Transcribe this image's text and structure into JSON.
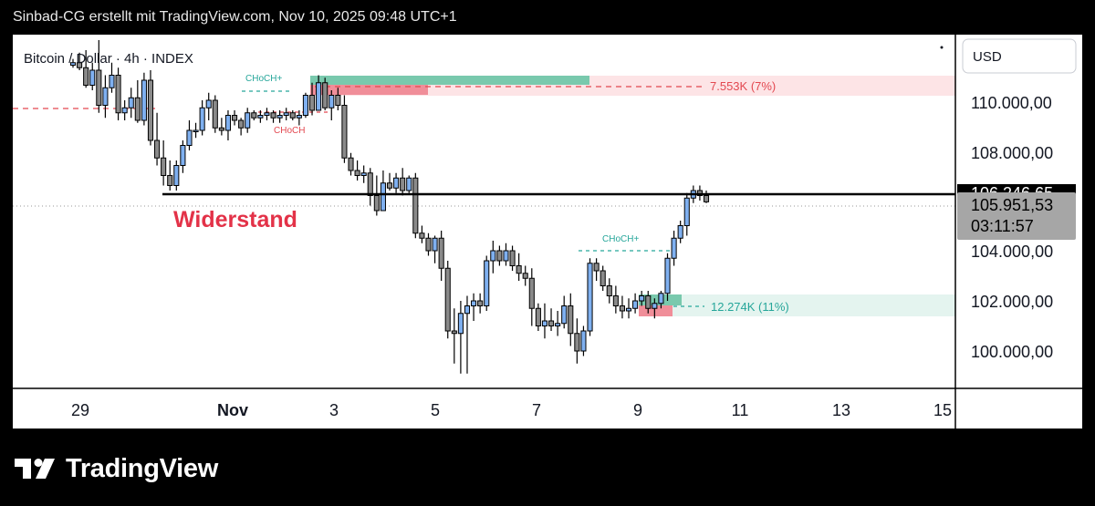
{
  "header": {
    "caption": "Sinbad-CG erstellt mit TradingView.com, Nov 10, 2025 09:48 UTC+1"
  },
  "chart_data": {
    "type": "candlestick",
    "title": "Bitcoin / Dollar · 4h · INDEX",
    "currency": "USD",
    "ylim": [
      98500,
      112500
    ],
    "y_ticks": [
      {
        "value": 100000,
        "label": "100.000,00"
      },
      {
        "value": 102000,
        "label": "102.000,00"
      },
      {
        "value": 104000,
        "label": "104.000,00"
      },
      {
        "value": 108000,
        "label": "108.000,00"
      },
      {
        "value": 110000,
        "label": "110.000,00"
      }
    ],
    "x_range": [
      28.1,
      15.85
    ],
    "x_ticks": [
      {
        "day": 29,
        "label": "29"
      },
      {
        "day": 32,
        "label": "Nov"
      },
      {
        "day": 35,
        "label": "3"
      },
      {
        "day": 37,
        "label": "5"
      },
      {
        "day": 39,
        "label": "7"
      },
      {
        "day": 41,
        "label": "9"
      },
      {
        "day": 43,
        "label": "11"
      },
      {
        "day": 45,
        "label": "13"
      },
      {
        "day": 47,
        "label": "15"
      }
    ],
    "current_price": {
      "value": 105951.53,
      "label": "105.951,53",
      "countdown": "03:11:57"
    },
    "resistance": {
      "value": 106246.65,
      "label": "106.246,65",
      "text": "Widerstand"
    },
    "annotations": [
      {
        "text": "CHoCH+",
        "color": "#26a69a"
      },
      {
        "text": "CHoCH",
        "color": "#e34850"
      },
      {
        "text": "CHoCH+",
        "color": "#26a69a"
      },
      {
        "text": "7.553K (7%)",
        "color": "#e34850"
      },
      {
        "text": "12.274K (11%)",
        "color": "#26a69a"
      }
    ],
    "zones": [
      {
        "kind": "supply",
        "from": 109750,
        "to": 111000,
        "color": "#fde4e6"
      },
      {
        "kind": "demand",
        "from": 101350,
        "to": 102300,
        "color": "#e4f4ef"
      }
    ],
    "colors": {
      "up": "#7fb0f0",
      "down": "#8a8a8a",
      "resistance": "#000000",
      "red": "#e34850",
      "green": "#26a69a"
    },
    "candles": [
      [
        111400,
        111650,
        111300,
        111500
      ],
      [
        111500,
        111900,
        111200,
        111300
      ],
      [
        111300,
        112000,
        110500,
        110600
      ],
      [
        110600,
        111500,
        110400,
        111200
      ],
      [
        111200,
        112400,
        109500,
        109800
      ],
      [
        109800,
        111000,
        109300,
        110500
      ],
      [
        110500,
        111500,
        110300,
        111000
      ],
      [
        111000,
        111300,
        109200,
        109500
      ],
      [
        109500,
        110000,
        109200,
        109700
      ],
      [
        109700,
        110500,
        109300,
        110100
      ],
      [
        110100,
        110800,
        109100,
        109200
      ],
      [
        109200,
        111100,
        109000,
        110800
      ],
      [
        110800,
        111200,
        108200,
        108400
      ],
      [
        108400,
        109500,
        107400,
        107700
      ],
      [
        107700,
        108400,
        106600,
        107000
      ],
      [
        107000,
        107600,
        106400,
        106600
      ],
      [
        106600,
        107600,
        106400,
        107400
      ],
      [
        107400,
        108400,
        107100,
        108200
      ],
      [
        108200,
        109200,
        108000,
        108800
      ],
      [
        108800,
        109100,
        108500,
        108800
      ],
      [
        108800,
        110000,
        108600,
        109700
      ],
      [
        109700,
        110300,
        109200,
        110000
      ],
      [
        110000,
        110200,
        108700,
        108900
      ],
      [
        108900,
        109300,
        108600,
        108800
      ],
      [
        108800,
        109600,
        108400,
        109400
      ],
      [
        109400,
        109600,
        109000,
        109200
      ],
      [
        109200,
        109300,
        108600,
        108900
      ],
      [
        108900,
        109700,
        108700,
        109500
      ],
      [
        109500,
        109600,
        109200,
        109300
      ],
      [
        109300,
        109600,
        109100,
        109400
      ],
      [
        109400,
        109700,
        109200,
        109500
      ],
      [
        109500,
        109600,
        109100,
        109300
      ],
      [
        109300,
        109600,
        109100,
        109400
      ],
      [
        109400,
        109700,
        109200,
        109500
      ],
      [
        109500,
        109600,
        109200,
        109300
      ],
      [
        109300,
        109600,
        109000,
        109400
      ],
      [
        109400,
        110300,
        109300,
        110200
      ],
      [
        110200,
        110700,
        109400,
        109600
      ],
      [
        109600,
        111000,
        109600,
        110700
      ],
      [
        110700,
        110900,
        109600,
        109700
      ],
      [
        109700,
        110400,
        109200,
        110200
      ],
      [
        110200,
        110500,
        109600,
        109800
      ],
      [
        109800,
        110200,
        107500,
        107700
      ],
      [
        107700,
        107900,
        107000,
        107200
      ],
      [
        107200,
        107600,
        106800,
        107000
      ],
      [
        107000,
        107400,
        106700,
        107100
      ],
      [
        107100,
        107300,
        105800,
        106200
      ],
      [
        106200,
        107000,
        105400,
        105600
      ],
      [
        105600,
        107200,
        105600,
        106700
      ],
      [
        106700,
        107100,
        106400,
        106500
      ],
      [
        106500,
        107100,
        106300,
        106900
      ],
      [
        106900,
        107300,
        106200,
        106400
      ],
      [
        106400,
        107000,
        106300,
        106900
      ],
      [
        106900,
        107100,
        104500,
        104700
      ],
      [
        104700,
        105000,
        104300,
        104500
      ],
      [
        104500,
        104700,
        103800,
        104000
      ],
      [
        104000,
        104600,
        103500,
        104500
      ],
      [
        104500,
        104800,
        102800,
        103300
      ],
      [
        103300,
        103600,
        100500,
        100800
      ],
      [
        100800,
        101700,
        99500,
        100700
      ],
      [
        100700,
        102000,
        99100,
        101500
      ],
      [
        101500,
        102200,
        99100,
        101800
      ],
      [
        101800,
        102300,
        101200,
        102000
      ],
      [
        102000,
        102300,
        101500,
        101800
      ],
      [
        101800,
        103800,
        101600,
        103600
      ],
      [
        103600,
        104400,
        103100,
        104000
      ],
      [
        104000,
        104200,
        103400,
        103600
      ],
      [
        103600,
        104300,
        103400,
        104000
      ],
      [
        104000,
        104200,
        103200,
        103400
      ],
      [
        103400,
        103900,
        102800,
        103100
      ],
      [
        103100,
        103400,
        102600,
        102900
      ],
      [
        102900,
        103300,
        101000,
        101700
      ],
      [
        101700,
        101900,
        100800,
        101000
      ],
      [
        101000,
        101900,
        100500,
        101200
      ],
      [
        101200,
        101700,
        100800,
        101000
      ],
      [
        101000,
        101600,
        100600,
        101100
      ],
      [
        101100,
        102200,
        100900,
        101800
      ],
      [
        101800,
        102300,
        100200,
        100700
      ],
      [
        100700,
        101300,
        99500,
        100000
      ],
      [
        100000,
        101000,
        99800,
        100800
      ],
      [
        100800,
        103700,
        100600,
        103500
      ],
      [
        103500,
        103700,
        102800,
        103200
      ],
      [
        103200,
        103400,
        102400,
        102600
      ],
      [
        102600,
        102900,
        101900,
        102200
      ],
      [
        102200,
        102600,
        101500,
        101800
      ],
      [
        101800,
        102200,
        101300,
        101600
      ],
      [
        101600,
        102100,
        101300,
        101700
      ],
      [
        101700,
        102300,
        101500,
        102000
      ],
      [
        102000,
        102400,
        101800,
        102200
      ],
      [
        102200,
        102400,
        101500,
        101700
      ],
      [
        101700,
        102100,
        101300,
        101900
      ],
      [
        101900,
        102400,
        101700,
        102300
      ],
      [
        102300,
        103900,
        102000,
        103700
      ],
      [
        103700,
        104800,
        103400,
        104500
      ],
      [
        104500,
        105200,
        104300,
        105000
      ],
      [
        105000,
        106300,
        104600,
        106100
      ],
      [
        106100,
        106600,
        105900,
        106400
      ],
      [
        106400,
        106600,
        106000,
        106200
      ],
      [
        106200,
        106400,
        105900,
        105950
      ]
    ]
  }
}
